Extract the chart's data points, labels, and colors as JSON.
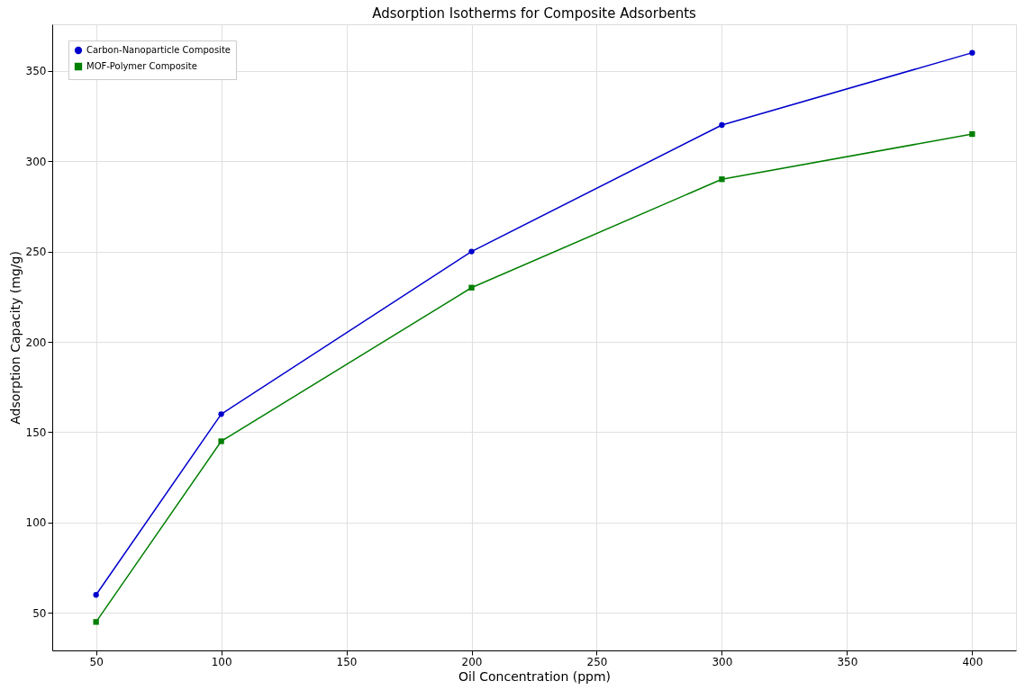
{
  "chart_data": {
    "type": "line",
    "title": "Adsorption Isotherms for Composite Adsorbents",
    "xlabel": "Oil Concentration (ppm)",
    "ylabel": "Adsorption Capacity (mg/g)",
    "x": [
      50,
      100,
      200,
      300,
      400
    ],
    "series": [
      {
        "name": "Carbon-Nanoparticle Composite",
        "color": "#0000cc",
        "marker": "circle",
        "values": [
          60,
          160,
          250,
          320,
          360
        ]
      },
      {
        "name": "MOF-Polymer Composite",
        "color": "#007f00",
        "marker": "square",
        "values": [
          45,
          145,
          230,
          290,
          315
        ]
      }
    ],
    "xlim": [
      32.5,
      417.5
    ],
    "xticks": [
      50,
      100,
      150,
      200,
      250,
      300,
      350,
      400
    ],
    "ylim": [
      29.25,
      375.75
    ],
    "yticks": [
      50,
      100,
      150,
      200,
      250,
      300,
      350
    ],
    "grid": true,
    "legend": "top left",
    "line_style": "solid"
  }
}
